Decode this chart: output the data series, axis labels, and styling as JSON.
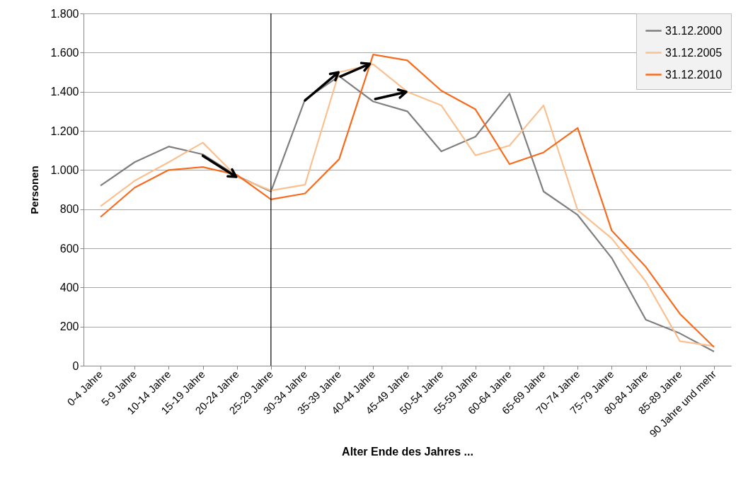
{
  "chart_data": {
    "type": "line",
    "xlabel": "Alter Ende des Jahres ...",
    "ylabel": "Personen",
    "categories": [
      "0-4 Jahre",
      "5-9 Jahre",
      "10-14 Jahre",
      "15-19 Jahre",
      "20-24 Jahre",
      "25-29 Jahre",
      "30-34 Jahre",
      "35-39 Jahre",
      "40-44 Jahre",
      "45-49 Jahre",
      "50-54 Jahre",
      "55-59 Jahre",
      "60-64 Jahre",
      "65-69 Jahre",
      "70-74 Jahre",
      "75-79 Jahre",
      "80-84 Jahre",
      "85-89 Jahre",
      "90 Jahre und mehr"
    ],
    "series": [
      {
        "name": "31.12.2000",
        "color": "#7f7f7f",
        "values": [
          920,
          1040,
          1120,
          1080,
          970,
          890,
          1360,
          1480,
          1350,
          1300,
          1095,
          1170,
          1390,
          890,
          770,
          550,
          235,
          165,
          72
        ]
      },
      {
        "name": "31.12.2005",
        "color": "#fac090",
        "values": [
          815,
          945,
          1040,
          1140,
          965,
          895,
          925,
          1500,
          1540,
          1400,
          1330,
          1075,
          1125,
          1330,
          795,
          650,
          430,
          125,
          100
        ]
      },
      {
        "name": "31.12.2010",
        "color": "#f86a1c",
        "values": [
          760,
          910,
          1000,
          1015,
          975,
          850,
          880,
          1055,
          1590,
          1560,
          1405,
          1310,
          1030,
          1090,
          1215,
          690,
          505,
          265,
          95
        ]
      }
    ],
    "ylim": [
      0,
      1800
    ],
    "yticks": [
      0,
      {
        "value": 200,
        "label": "200"
      },
      {
        "value": 400,
        "label": "400"
      },
      {
        "value": 600,
        "label": "600"
      },
      {
        "value": 800,
        "label": "800"
      },
      {
        "value": 1000,
        "label": "1.000"
      },
      {
        "value": 1200,
        "label": "1.200"
      },
      {
        "value": 1400,
        "label": "1.400"
      },
      {
        "value": 1600,
        "label": "1.600"
      },
      {
        "value": 1800,
        "label": "1.800"
      }
    ],
    "ref_lines": [
      {
        "axis": "x",
        "value": "25-29 Jahre",
        "color": "#000000"
      }
    ],
    "grid": "y",
    "legend": "top right",
    "marker": "none",
    "line_style": "solid"
  }
}
